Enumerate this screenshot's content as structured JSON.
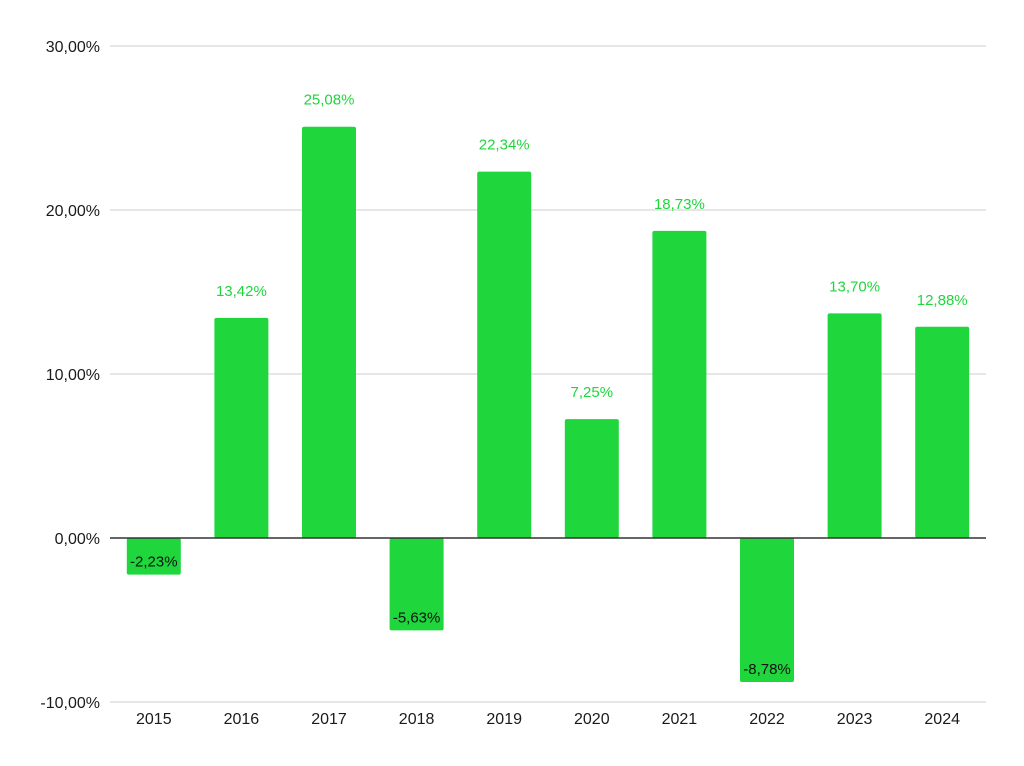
{
  "chart_data": {
    "type": "bar",
    "categories": [
      "2015",
      "2016",
      "2017",
      "2018",
      "2019",
      "2020",
      "2021",
      "2022",
      "2023",
      "2024"
    ],
    "values": [
      -2.23,
      13.42,
      25.08,
      -5.63,
      22.34,
      7.25,
      18.73,
      -8.78,
      13.7,
      12.88
    ],
    "data_labels": [
      "-2,23%",
      "13,42%",
      "25,08%",
      "-5,63%",
      "22,34%",
      "7,25%",
      "18,73%",
      "-8,78%",
      "13,70%",
      "12,88%"
    ],
    "title": "",
    "xlabel": "",
    "ylabel": "",
    "ylim": [
      -10,
      30
    ],
    "yticks": [
      30,
      20,
      10,
      0,
      -10
    ],
    "ytick_labels": [
      "30,00%",
      "20,00%",
      "10,00%",
      "0,00%",
      "-10,00%"
    ],
    "grid": true,
    "legend": "none",
    "colors": {
      "bar": "#1fd63d",
      "label_outside": "#1fd63d",
      "label_inside": "#111111",
      "grid": "#cccccc",
      "zero_axis": "#333333"
    }
  }
}
